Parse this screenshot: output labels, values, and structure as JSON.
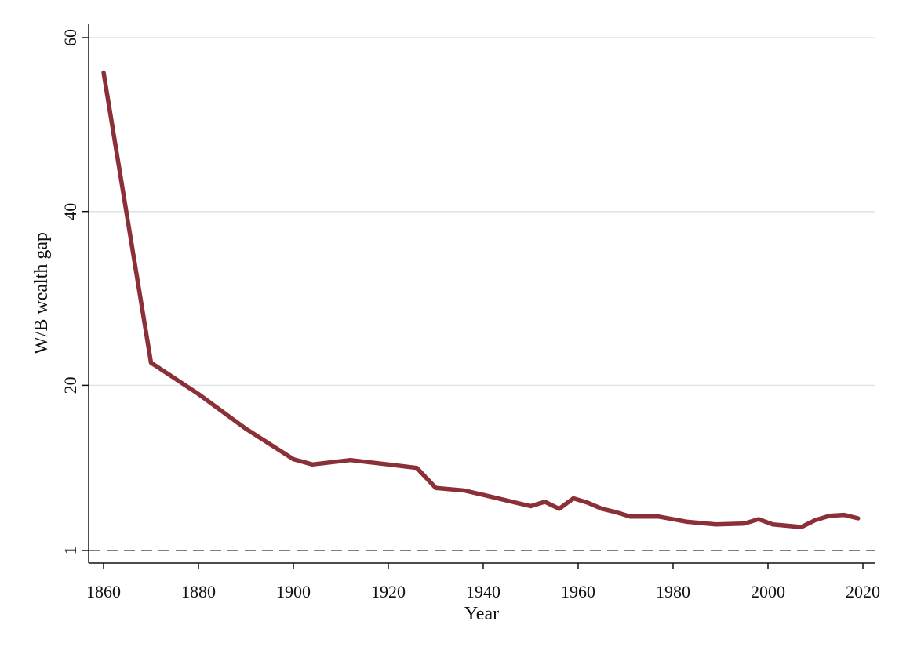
{
  "chart_data": {
    "type": "line",
    "xlabel": "Year",
    "ylabel": "W/B wealth gap",
    "xlim": [
      1857,
      2023
    ],
    "ylim": [
      1,
      60
    ],
    "x_ticks": [
      1860,
      1880,
      1900,
      1920,
      1940,
      1960,
      1980,
      2000,
      2020
    ],
    "y_ticks": [
      1,
      20,
      40,
      60
    ],
    "grid": "horizontal",
    "reference_line": {
      "y": 1,
      "style": "dashed"
    },
    "series": [
      {
        "x": [
          1860,
          1870,
          1880,
          1890,
          1900,
          1904,
          1912,
          1920,
          1926,
          1930,
          1936,
          1940,
          1950,
          1953,
          1956,
          1959,
          1962,
          1965,
          1968,
          1971,
          1977,
          1983,
          1989,
          1995,
          1998,
          2001,
          2007,
          2010,
          2013,
          2016,
          2019
        ],
        "values": [
          56.0,
          22.6,
          19.0,
          15.0,
          11.5,
          10.9,
          11.4,
          10.9,
          10.5,
          8.2,
          7.9,
          7.4,
          6.1,
          6.6,
          5.8,
          7.0,
          6.5,
          5.8,
          5.4,
          4.9,
          4.9,
          4.3,
          4.0,
          4.1,
          4.6,
          4.0,
          3.7,
          4.5,
          5.0,
          5.1,
          4.7
        ],
        "color": "#8c3038"
      }
    ],
    "grid_color": "#dde6e6",
    "reference_color": "#808080"
  }
}
